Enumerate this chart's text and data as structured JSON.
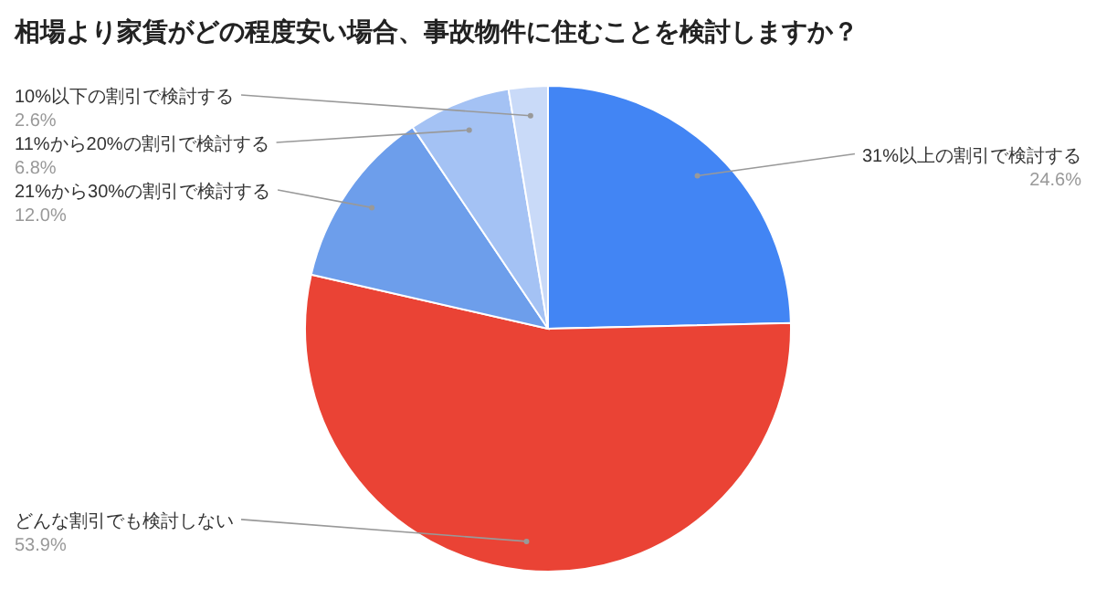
{
  "chart_data": {
    "type": "pie",
    "title": "相場より家賃がどの程度安い場合、事故物件に住むことを検討しますか？",
    "categories": [
      "31%以上の割引で検討する",
      "どんな割引でも検討しない",
      "21%から30%の割引で検討する",
      "11%から20%の割引で検討する",
      "10%以下の割引で検討する"
    ],
    "values": [
      24.6,
      53.9,
      12.0,
      6.8,
      2.6
    ],
    "value_labels": [
      "24.6%",
      "53.9%",
      "12.0%",
      "6.8%",
      "2.6%"
    ],
    "colors": [
      "#4285f4",
      "#ea4335",
      "#6d9eeb",
      "#a4c2f4",
      "#c9daf8"
    ]
  }
}
